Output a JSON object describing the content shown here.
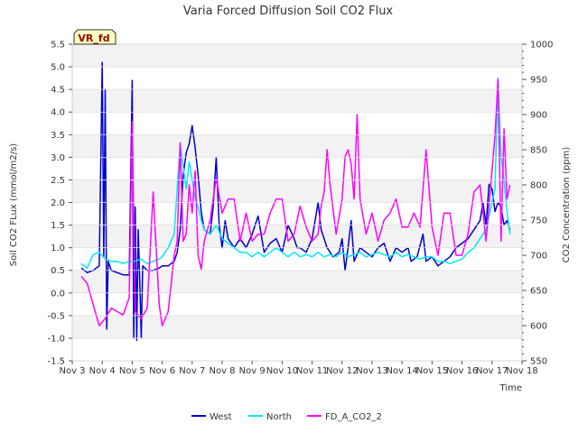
{
  "chart_data": {
    "type": "line",
    "title": "Varia Forced Diffusion Soil CO2 Flux",
    "badge": "VR_fd",
    "xlabel": "Time",
    "ylabel": "Soil CO2 FLux (mmol/m2/s)",
    "ylabel2": "CO2 Concentration (ppm)",
    "xlim": [
      3,
      18
    ],
    "ylim": [
      -1.5,
      5.5
    ],
    "ylim2": [
      550,
      1000
    ],
    "x_ticks": [
      3,
      4,
      5,
      6,
      7,
      8,
      9,
      10,
      11,
      12,
      13,
      14,
      15,
      16,
      17,
      18
    ],
    "x_tick_labels": [
      "Nov 3",
      "Nov 4",
      "Nov 5",
      "Nov 6",
      "Nov 7",
      "Nov 8",
      "Nov 9",
      "Nov 10",
      "Nov 11",
      "Nov 12",
      "Nov 13",
      "Nov 14",
      "Nov 15",
      "Nov 16",
      "Nov 17",
      "Nov 18"
    ],
    "y_ticks": [
      -1.5,
      -1.0,
      -0.5,
      0.0,
      0.5,
      1.0,
      1.5,
      2.0,
      2.5,
      3.0,
      3.5,
      4.0,
      4.5,
      5.0,
      5.5
    ],
    "y_tick_labels": [
      "-1.5",
      "-1.0",
      "-0.5",
      "0.0",
      "0.5",
      "1.0",
      "1.5",
      "2.0",
      "2.5",
      "3.0",
      "3.5",
      "4.0",
      "4.5",
      "5.0",
      "5.5"
    ],
    "y2_ticks": [
      550,
      600,
      650,
      700,
      750,
      800,
      850,
      900,
      950,
      1000
    ],
    "y2_tick_labels": [
      "550",
      "600",
      "650",
      "700",
      "750",
      "800",
      "850",
      "900",
      "950",
      "1000"
    ],
    "grid": true,
    "legend_position": "bottom",
    "series": [
      {
        "name": "West",
        "axis": "left",
        "color": "#0000cc",
        "x": [
          3.3,
          3.5,
          3.7,
          3.9,
          4.0,
          4.05,
          4.1,
          4.15,
          4.2,
          4.3,
          4.5,
          4.7,
          4.9,
          5.0,
          5.05,
          5.1,
          5.15,
          5.2,
          5.25,
          5.3,
          5.35,
          5.5,
          5.7,
          5.9,
          6.0,
          6.2,
          6.4,
          6.5,
          6.6,
          6.7,
          6.8,
          6.9,
          7.0,
          7.1,
          7.2,
          7.3,
          7.4,
          7.6,
          7.7,
          7.8,
          7.9,
          8.0,
          8.1,
          8.2,
          8.3,
          8.4,
          8.5,
          8.6,
          8.8,
          9.0,
          9.2,
          9.4,
          9.6,
          9.8,
          10.0,
          10.2,
          10.4,
          10.5,
          10.6,
          10.8,
          11.0,
          11.2,
          11.3,
          11.5,
          11.7,
          11.9,
          12.0,
          12.1,
          12.2,
          12.3,
          12.4,
          12.6,
          12.8,
          13.0,
          13.2,
          13.4,
          13.5,
          13.6,
          13.8,
          14.0,
          14.2,
          14.3,
          14.5,
          14.7,
          14.8,
          15.0,
          15.2,
          15.4,
          15.6,
          15.8,
          16.0,
          16.2,
          16.4,
          16.6,
          16.7,
          16.8,
          16.9,
          17.0,
          17.1,
          17.2,
          17.3,
          17.4,
          17.5,
          17.6
        ],
        "y": [
          0.55,
          0.45,
          0.5,
          0.6,
          5.1,
          0.8,
          4.5,
          -0.8,
          0.7,
          0.5,
          0.45,
          0.4,
          0.4,
          4.7,
          -1.0,
          1.9,
          -1.05,
          1.4,
          0.3,
          -1.0,
          0.6,
          0.5,
          0.5,
          0.55,
          0.6,
          0.6,
          0.7,
          0.9,
          1.4,
          2.6,
          3.1,
          3.3,
          3.7,
          3.2,
          2.6,
          1.8,
          1.4,
          1.3,
          1.9,
          3.0,
          1.5,
          1.0,
          1.6,
          1.2,
          1.1,
          1.0,
          1.1,
          1.2,
          1.0,
          1.3,
          1.7,
          0.9,
          1.1,
          1.2,
          0.9,
          1.5,
          1.2,
          1.0,
          1.0,
          0.9,
          1.2,
          2.0,
          1.4,
          1.0,
          0.8,
          0.9,
          1.2,
          0.5,
          1.0,
          1.6,
          0.7,
          1.0,
          0.9,
          0.8,
          1.0,
          1.1,
          0.9,
          0.7,
          1.0,
          0.9,
          1.0,
          0.7,
          0.8,
          1.3,
          0.7,
          0.8,
          0.6,
          0.7,
          0.8,
          1.0,
          1.1,
          1.2,
          1.4,
          1.6,
          2.0,
          1.5,
          2.4,
          2.3,
          1.8,
          2.0,
          1.9,
          1.5,
          1.6,
          1.4
        ]
      },
      {
        "name": "North",
        "axis": "left",
        "color": "#00e5ff",
        "x": [
          3.3,
          3.5,
          3.7,
          3.9,
          4.1,
          4.3,
          4.5,
          4.7,
          4.9,
          5.1,
          5.3,
          5.5,
          5.7,
          5.9,
          6.0,
          6.2,
          6.4,
          6.6,
          6.7,
          6.8,
          6.9,
          7.0,
          7.1,
          7.2,
          7.3,
          7.4,
          7.6,
          7.8,
          8.0,
          8.2,
          8.4,
          8.6,
          8.8,
          9.0,
          9.2,
          9.4,
          9.6,
          9.8,
          10.0,
          10.2,
          10.4,
          10.6,
          10.8,
          11.0,
          11.2,
          11.4,
          11.6,
          11.8,
          12.0,
          12.2,
          12.4,
          12.6,
          12.8,
          13.0,
          13.2,
          13.4,
          13.6,
          13.8,
          14.0,
          14.2,
          14.4,
          14.6,
          14.8,
          15.0,
          15.2,
          15.4,
          15.6,
          15.8,
          16.0,
          16.2,
          16.4,
          16.6,
          16.8,
          17.0,
          17.1,
          17.2,
          17.3,
          17.4,
          17.5,
          17.6
        ],
        "y": [
          0.65,
          0.55,
          0.85,
          0.9,
          0.75,
          0.7,
          0.7,
          0.65,
          0.7,
          0.7,
          0.75,
          0.65,
          0.7,
          0.75,
          0.8,
          1.0,
          1.3,
          3.3,
          2.8,
          2.3,
          2.9,
          2.5,
          2.1,
          1.9,
          1.6,
          1.4,
          1.3,
          1.5,
          1.2,
          1.1,
          1.0,
          0.9,
          0.9,
          0.8,
          0.9,
          0.8,
          0.9,
          1.0,
          0.9,
          0.8,
          0.9,
          0.8,
          0.85,
          0.8,
          0.9,
          0.8,
          0.85,
          0.8,
          0.9,
          0.8,
          0.85,
          0.9,
          0.8,
          0.85,
          0.9,
          0.85,
          0.8,
          0.9,
          0.8,
          0.85,
          0.8,
          0.75,
          0.8,
          0.8,
          0.7,
          0.7,
          0.65,
          0.7,
          0.75,
          0.9,
          1.0,
          1.2,
          1.4,
          2.0,
          2.3,
          4.75,
          3.0,
          2.5,
          1.8,
          1.3
        ]
      },
      {
        "name": "FD_A_CO2_2",
        "axis": "right",
        "color": "#ff00ff",
        "x": [
          3.3,
          3.5,
          3.7,
          3.9,
          4.1,
          4.3,
          4.5,
          4.7,
          4.9,
          5.0,
          5.1,
          5.3,
          5.5,
          5.7,
          5.9,
          6.0,
          6.2,
          6.4,
          6.5,
          6.6,
          6.7,
          6.8,
          6.9,
          7.0,
          7.1,
          7.2,
          7.3,
          7.4,
          7.6,
          7.8,
          8.0,
          8.2,
          8.4,
          8.6,
          8.8,
          9.0,
          9.2,
          9.4,
          9.6,
          9.8,
          10.0,
          10.2,
          10.4,
          10.6,
          10.8,
          11.0,
          11.2,
          11.3,
          11.4,
          11.5,
          11.6,
          11.8,
          12.0,
          12.1,
          12.2,
          12.3,
          12.4,
          12.5,
          12.6,
          12.8,
          13.0,
          13.2,
          13.4,
          13.6,
          13.8,
          14.0,
          14.2,
          14.4,
          14.6,
          14.8,
          15.0,
          15.2,
          15.4,
          15.6,
          15.8,
          16.0,
          16.2,
          16.4,
          16.6,
          16.8,
          17.0,
          17.1,
          17.2,
          17.3,
          17.4,
          17.5,
          17.6
        ],
        "y": [
          670,
          660,
          630,
          600,
          610,
          625,
          620,
          615,
          640,
          890,
          620,
          610,
          625,
          790,
          630,
          600,
          620,
          700,
          720,
          860,
          720,
          730,
          800,
          760,
          820,
          700,
          680,
          720,
          750,
          810,
          760,
          780,
          780,
          720,
          760,
          720,
          730,
          730,
          760,
          780,
          780,
          720,
          730,
          770,
          740,
          720,
          730,
          770,
          790,
          850,
          800,
          730,
          780,
          840,
          850,
          830,
          780,
          900,
          780,
          730,
          760,
          720,
          750,
          760,
          780,
          740,
          740,
          760,
          740,
          850,
          740,
          700,
          760,
          760,
          700,
          700,
          730,
          790,
          800,
          720,
          820,
          870,
          950,
          720,
          880,
          780,
          800
        ]
      }
    ]
  }
}
